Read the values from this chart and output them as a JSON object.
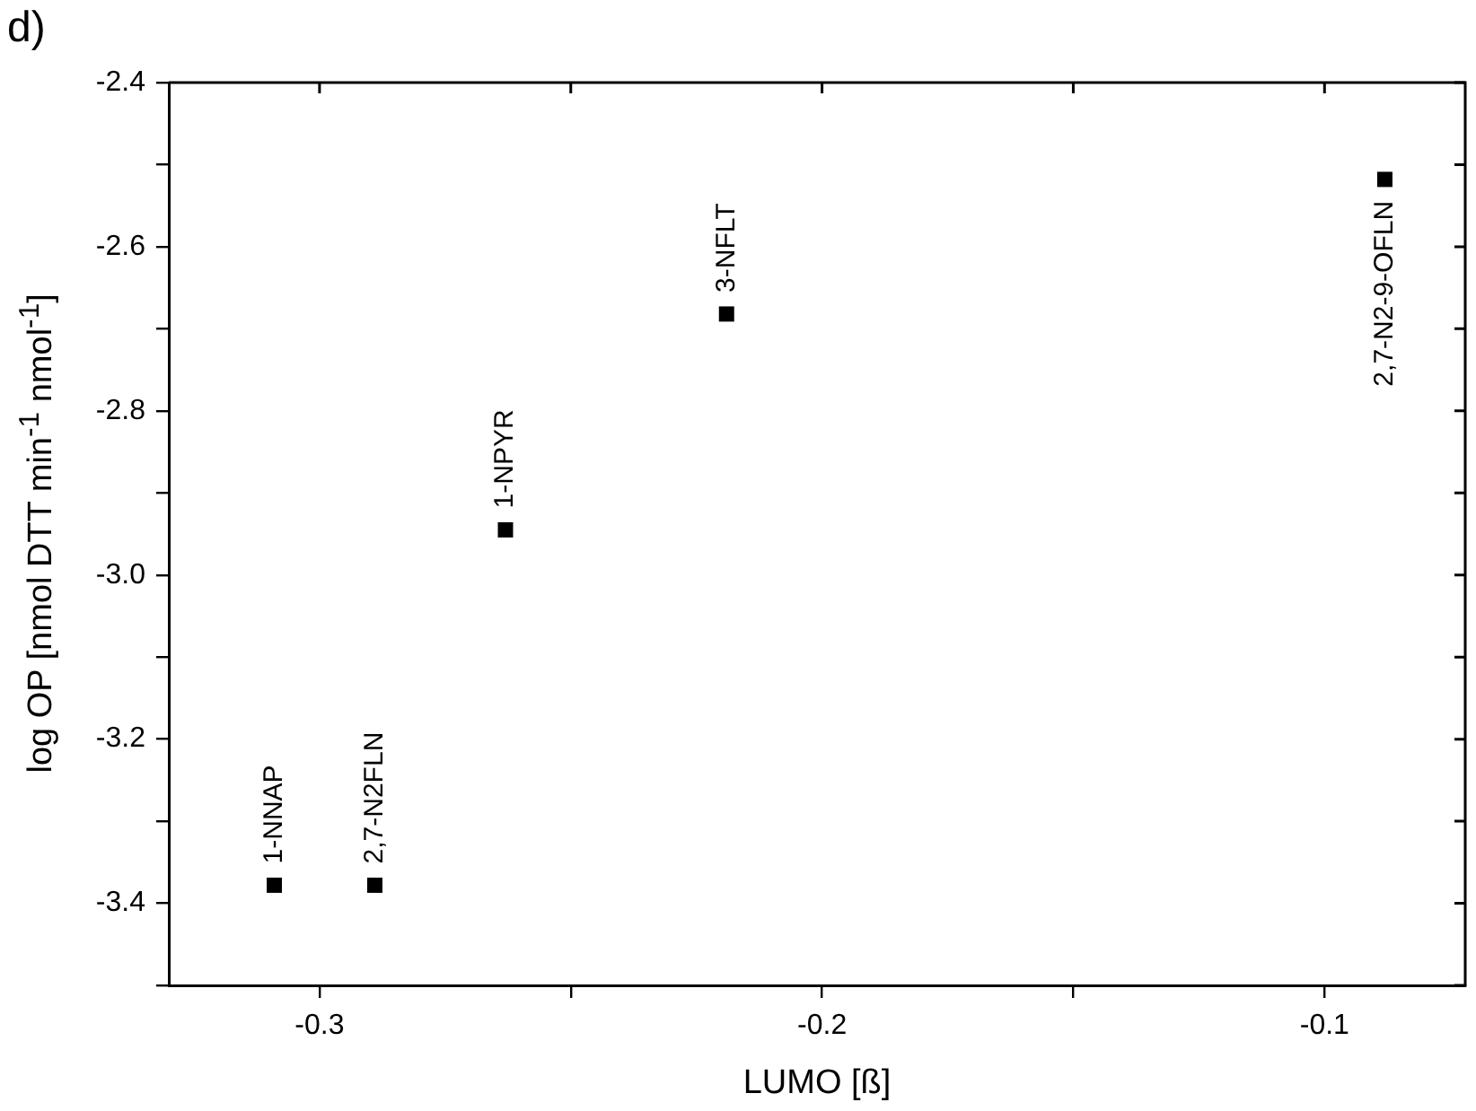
{
  "chart_data": {
    "type": "scatter",
    "xlabel": "LUMO [ß]",
    "ylabel": "log OP [nmol DTT min$^{-1}$ nmol$^{-1}$]",
    "annotations": [
      "d)",
      {
        "text": "1-NNAP",
        "x": -0.309,
        "y": -3.378
      },
      {
        "text": "2,7-N2FLN",
        "x": -0.289,
        "y": -3.378
      },
      {
        "text": "1-NPYR",
        "x": -0.263,
        "y": -2.945
      },
      {
        "text": "3-NFLT",
        "x": -0.219,
        "y": -2.682
      },
      {
        "text": "2,7-N2-9-OFLN",
        "x": -0.088,
        "y": -2.518
      }
    ],
    "x": [
      -0.309,
      -0.289,
      -0.263,
      -0.219,
      -0.088
    ],
    "values": [
      -3.378,
      -3.378,
      -2.945,
      -2.682,
      -2.518
    ],
    "color": "#000000",
    "marker": "square",
    "grid": false,
    "xlim": [
      -0.33,
      -0.072
    ],
    "xticks": [
      -0.3,
      {
        "value": -0.25,
        "label": null
      },
      -0.2,
      {
        "value": -0.15,
        "label": null
      },
      -0.1
    ],
    "ylim": [
      -3.5,
      -2.4
    ],
    "yticks": [
      {
        "value": -3.5,
        "label": null
      },
      -3.4,
      {
        "value": -3.3,
        "label": null
      },
      -3.2,
      {
        "value": -3.1,
        "label": null
      },
      {
        "value": -3.0,
        "label": "-3.0"
      },
      {
        "value": -2.9,
        "label": null
      },
      -2.8,
      {
        "value": -2.7,
        "label": null
      },
      -2.6,
      {
        "value": -2.5,
        "label": null
      },
      -2.4
    ]
  }
}
